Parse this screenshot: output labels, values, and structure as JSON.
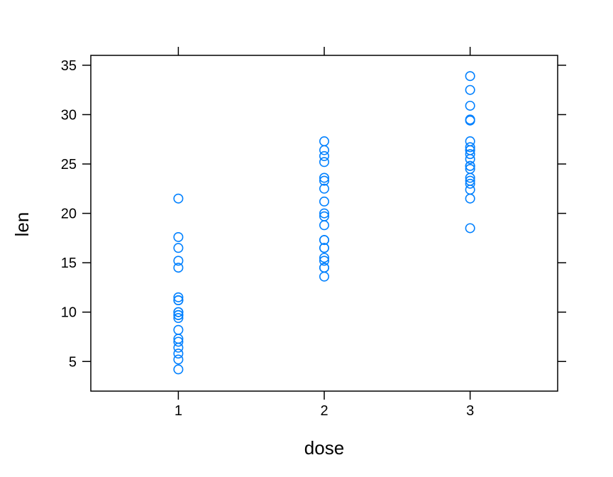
{
  "chart_data": {
    "type": "scatter",
    "title": "",
    "xlabel": "dose",
    "ylabel": "len",
    "xlim": [
      0.4,
      3.6
    ],
    "ylim": [
      2.0,
      36.0
    ],
    "x_ticks": [
      1,
      2,
      3
    ],
    "x_tick_labels": [
      "1",
      "2",
      "3"
    ],
    "y_ticks": [
      5,
      10,
      15,
      20,
      25,
      30,
      35
    ],
    "y_tick_labels": [
      "5",
      "10",
      "15",
      "20",
      "25",
      "30",
      "35"
    ],
    "grid": false,
    "legend": "none",
    "point_color": "#0080ff",
    "series": [
      {
        "x": [
          1,
          1,
          1,
          1,
          1,
          1,
          1,
          1,
          1,
          1,
          1,
          1,
          1,
          1,
          1,
          1,
          1,
          1,
          1,
          1,
          2,
          2,
          2,
          2,
          2,
          2,
          2,
          2,
          2,
          2,
          2,
          2,
          2,
          2,
          2,
          2,
          2,
          2,
          2,
          2,
          3,
          3,
          3,
          3,
          3,
          3,
          3,
          3,
          3,
          3,
          3,
          3,
          3,
          3,
          3,
          3,
          3,
          3,
          3,
          3
        ],
        "y": [
          4.2,
          5.2,
          5.8,
          6.4,
          7.0,
          7.3,
          8.2,
          9.4,
          9.7,
          9.7,
          10.0,
          10.0,
          11.2,
          11.2,
          11.5,
          14.5,
          15.2,
          16.5,
          17.6,
          21.5,
          13.6,
          14.5,
          14.5,
          15.2,
          15.5,
          16.5,
          16.5,
          17.3,
          17.3,
          18.8,
          19.7,
          20.0,
          21.2,
          22.5,
          23.3,
          23.6,
          25.2,
          25.8,
          26.4,
          27.3,
          18.5,
          21.5,
          22.4,
          23.0,
          23.3,
          23.6,
          24.5,
          24.8,
          25.5,
          26.4,
          26.4,
          26.7,
          27.3,
          29.4,
          29.5,
          30.9,
          32.5,
          33.9,
          26.0,
          24.8
        ]
      }
    ]
  }
}
